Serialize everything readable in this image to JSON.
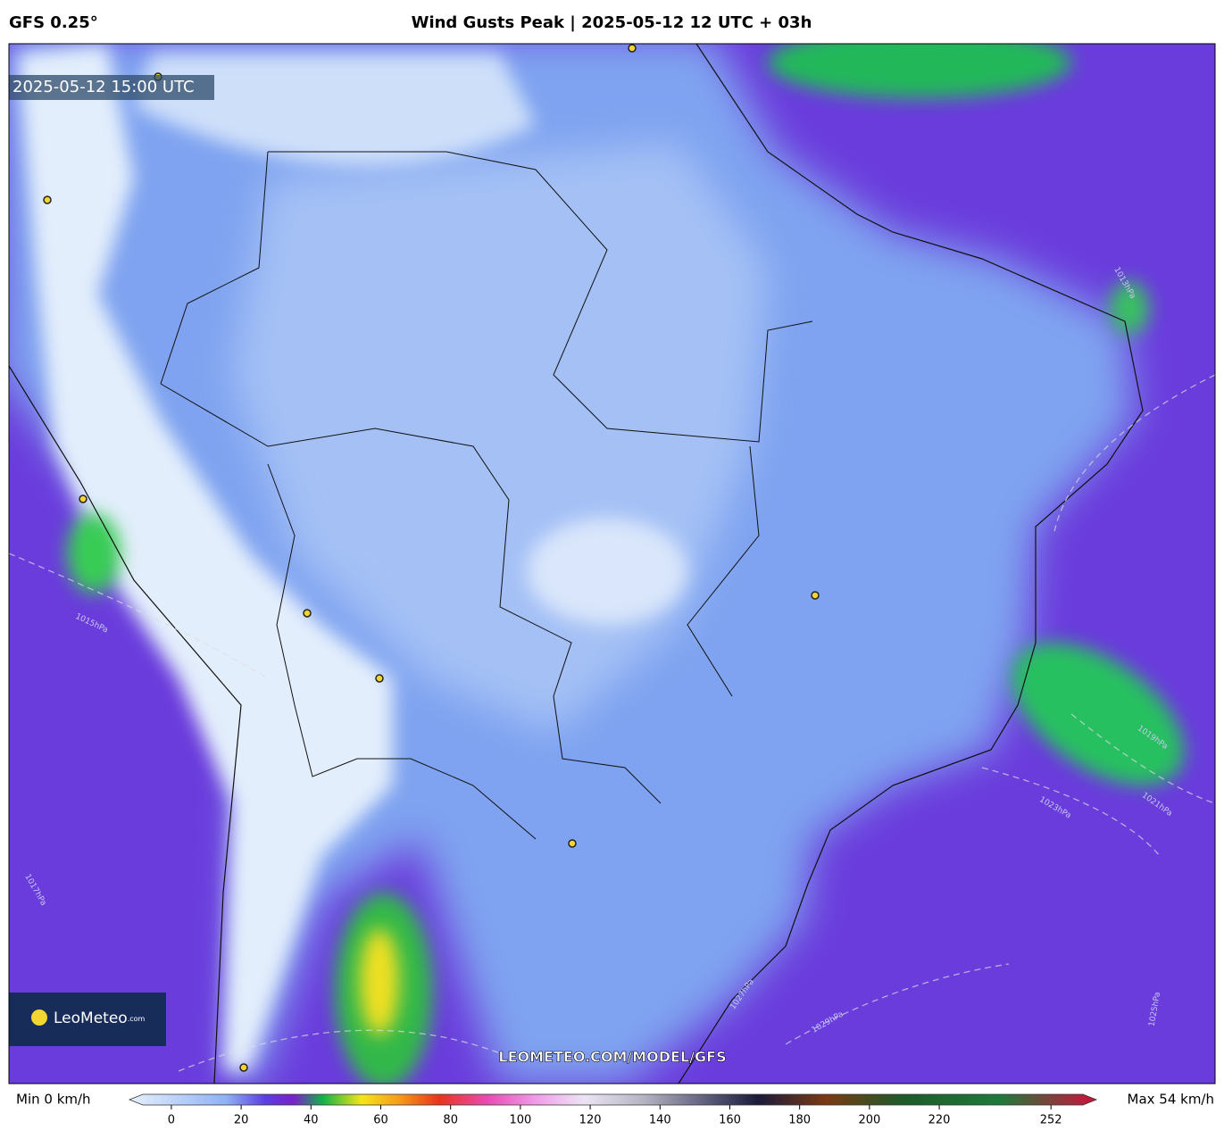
{
  "header": {
    "model": "GFS 0.25°",
    "title": "Wind Gusts Peak | 2025-05-12 12 UTC + 03h"
  },
  "map": {
    "timestamp": "2025-05-12 15:00 UTC",
    "logo": "LeoMeteo",
    "logo_domain": ".com",
    "watermark": "LEOMETEO.COM/MODEL/GFS",
    "isobar_labels": [
      "1013hPa",
      "1015hPa",
      "1017hPa",
      "1019hPa",
      "1021hPa",
      "1023hPa",
      "1025hPa",
      "1027hPa",
      "1029hPa"
    ]
  },
  "legend": {
    "min_label": "Min 0 km/h",
    "max_label": "Max 54 km/h",
    "lim": [
      -12,
      265
    ],
    "ticks": [
      0,
      20,
      40,
      60,
      80,
      100,
      120,
      140,
      160,
      180,
      200,
      220,
      252
    ]
  }
}
